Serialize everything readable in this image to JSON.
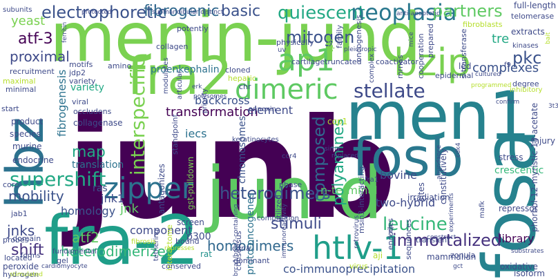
{
  "palette": {
    "dark_purple": "#440154",
    "indigo": "#3b528b",
    "blue": "#31688e",
    "teal": "#21918c",
    "green_teal": "#35b779",
    "green": "#5ec962",
    "lime": "#b5de2b",
    "yellow": "#fde725"
  },
  "words": [
    {
      "text": "junb",
      "color": "#440154"
    },
    {
      "text": "menin-jund",
      "color": "#7ad151"
    },
    {
      "text": "fra-2",
      "color": "#1f9e89"
    },
    {
      "text": "jun-d",
      "color": "#5ec962"
    },
    {
      "text": "men1",
      "color": "#26828e"
    },
    {
      "text": "fosb",
      "color": "#2a788e"
    },
    {
      "text": "fosa",
      "color": "#26828e"
    },
    {
      "text": "fra2",
      "color": "#7ad151"
    },
    {
      "text": "hbz",
      "color": "#2c728e"
    },
    {
      "text": "bzip",
      "color": "#7ad151"
    },
    {
      "text": "ap1",
      "color": "#5ec962"
    },
    {
      "text": "dimeric",
      "color": "#5ec962"
    },
    {
      "text": "zipper",
      "color": "#2c728e"
    },
    {
      "text": "htlv-1",
      "color": "#1f9e89"
    },
    {
      "text": "interspecific",
      "color": "#7ad151"
    },
    {
      "text": "supershift",
      "color": "#22a884"
    },
    {
      "text": "heterodimers",
      "color": "#3b528b"
    },
    {
      "text": "electrophoretic",
      "color": "#3b528b"
    },
    {
      "text": "quiescent",
      "color": "#22a884"
    },
    {
      "text": "neoplasia",
      "color": "#2a788e"
    },
    {
      "text": "partners",
      "color": "#5ec962"
    },
    {
      "text": "fibrogenic",
      "color": "#31688e"
    },
    {
      "text": "mitogen",
      "color": "#3b528b"
    },
    {
      "text": "stellate",
      "color": "#3e4a89"
    },
    {
      "text": "basic",
      "color": "#3b528b"
    },
    {
      "text": "atf-3",
      "color": "#440154"
    },
    {
      "text": "proximal",
      "color": "#3e4a89"
    },
    {
      "text": "yeast",
      "color": "#7ad151"
    },
    {
      "text": "pkc",
      "color": "#3b528b"
    },
    {
      "text": "composed",
      "color": "#31688e"
    },
    {
      "text": "polyamines",
      "color": "#22a884"
    },
    {
      "text": "stimuli",
      "color": "#3e4a89"
    },
    {
      "text": "leucine",
      "color": "#35b779"
    },
    {
      "text": "immortalized",
      "color": "#46327e"
    },
    {
      "text": "complexes",
      "color": "#3b528b"
    },
    {
      "text": "homodimers",
      "color": "#31688e"
    },
    {
      "text": "shift",
      "color": "#46327e"
    },
    {
      "text": "heterodimerizes",
      "color": "#35b779"
    },
    {
      "text": "mobility",
      "color": "#3b528b"
    },
    {
      "text": "jnks",
      "color": "#3e4a89"
    },
    {
      "text": "map",
      "color": "#22a884"
    },
    {
      "text": "transformation",
      "color": "#440154"
    },
    {
      "text": "backcross",
      "color": "#3b528b"
    },
    {
      "text": "element",
      "color": "#3e4a89"
    },
    {
      "text": "translation",
      "color": "#2c728e"
    },
    {
      "text": "jnk1",
      "color": "#3e4a89"
    },
    {
      "text": "jnk",
      "color": "#5ec962"
    },
    {
      "text": "atf2",
      "color": "#5ec962"
    },
    {
      "text": "component",
      "color": "#3e4a89"
    },
    {
      "text": "homology",
      "color": "#3b528b"
    },
    {
      "text": "two-hybrid",
      "color": "#3e4a89"
    },
    {
      "text": "n-terminal",
      "color": "#5ec962"
    },
    {
      "text": "bovine",
      "color": "#3e4a89"
    },
    {
      "text": "proenkephalin",
      "color": "#2c728e"
    },
    {
      "text": "tre",
      "color": "#22a884"
    },
    {
      "text": "fibrogenesis",
      "color": "#2c728e"
    },
    {
      "text": "variety",
      "color": "#22a884"
    },
    {
      "text": "library",
      "color": "#440154"
    },
    {
      "text": "crescentic",
      "color": "#35b779"
    },
    {
      "text": "phorbol-12-myristic-13-acetate",
      "color": "#3e4a89"
    },
    {
      "text": "co-immunoprecipitation",
      "color": "#3b528b"
    },
    {
      "text": "proto-oncogenes",
      "color": "#2c728e"
    },
    {
      "text": "chromosomes",
      "color": "#3b528b"
    },
    {
      "text": "gst-pulldown",
      "color": "#7ad151"
    },
    {
      "text": "antagonizes",
      "color": "#3e4a89"
    },
    {
      "text": "p300",
      "color": "#3e4a89"
    },
    {
      "text": "ras",
      "color": "#3b528b"
    },
    {
      "text": "rat",
      "color": "#21918c"
    },
    {
      "text": "iecs",
      "color": "#2c728e"
    },
    {
      "text": "collagenase",
      "color": "#3e4a89"
    },
    {
      "text": "fibroblasts",
      "color": "#b5de2b"
    },
    {
      "text": "extracts",
      "color": "#3e4a89"
    },
    {
      "text": "full-length",
      "color": "#3e4a89"
    },
    {
      "text": "oncogenesis",
      "color": "#3e4a89"
    },
    {
      "text": "cooperation",
      "color": "#3e4a89"
    },
    {
      "text": "irradiation",
      "color": "#3e4a89"
    },
    {
      "text": "mammalian",
      "color": "#3e4a89"
    },
    {
      "text": "immunoreactivity",
      "color": "#3e4a89"
    },
    {
      "text": "cartilage",
      "color": "#3e4a89"
    },
    {
      "text": "collagen",
      "color": "#3e4a89"
    },
    {
      "text": "tpa",
      "color": "#7ad151"
    },
    {
      "text": "hepatic",
      "color": "#b5de2b"
    },
    {
      "text": "cloned",
      "color": "#3e4a89"
    },
    {
      "text": "chr",
      "color": "#3e4a89"
    },
    {
      "text": "endocrine",
      "color": "#3e4a89"
    },
    {
      "text": "murine",
      "color": "#3e4a89"
    },
    {
      "text": "species",
      "color": "#3e4a89"
    },
    {
      "text": "product",
      "color": "#3e4a89"
    },
    {
      "text": "peroxide",
      "color": "#3e4a89"
    },
    {
      "text": "hydrogen",
      "color": "#3e4a89"
    },
    {
      "text": "located",
      "color": "#3e4a89"
    },
    {
      "text": "probes",
      "color": "#3e4a89"
    },
    {
      "text": "gel",
      "color": "#3e4a89"
    },
    {
      "text": "fundamental",
      "color": "#3e4a89"
    },
    {
      "text": "screen",
      "color": "#3e4a89"
    },
    {
      "text": "bound",
      "color": "#3e4a89"
    },
    {
      "text": "dominant",
      "color": "#3e4a89"
    },
    {
      "text": "cdna",
      "color": "#3e4a89"
    },
    {
      "text": "aji",
      "color": "#b5de2b"
    },
    {
      "text": "virus",
      "color": "#b5de2b"
    },
    {
      "text": "retrovirus",
      "color": "#3e4a89"
    },
    {
      "text": "encodes",
      "color": "#3e4a89"
    },
    {
      "text": "sequences",
      "color": "#3e4a89"
    },
    {
      "text": "transient",
      "color": "#3e4a89"
    },
    {
      "text": "zonula",
      "color": "#3e4a89"
    },
    {
      "text": "oxidative",
      "color": "#3e4a89"
    },
    {
      "text": "isoform",
      "color": "#3e4a89"
    },
    {
      "text": "repressor",
      "color": "#3e4a89"
    },
    {
      "text": "injury",
      "color": "#3e4a89"
    },
    {
      "text": "stress",
      "color": "#3e4a89"
    },
    {
      "text": "sites",
      "color": "#3e4a89"
    },
    {
      "text": "constitutively",
      "color": "#3e4a89"
    },
    {
      "text": "led",
      "color": "#3e4a89"
    },
    {
      "text": "cop1",
      "color": "#b5de2b"
    },
    {
      "text": "fra1",
      "color": "#3e4a89"
    },
    {
      "text": "ccr4",
      "color": "#3e4a89"
    },
    {
      "text": "phase",
      "color": "#3e4a89"
    },
    {
      "text": "utilized",
      "color": "#3e4a89"
    },
    {
      "text": "consensus",
      "color": "#3e4a89"
    },
    {
      "text": "interactome",
      "color": "#b5de2b"
    },
    {
      "text": "tethering",
      "color": "#3e4a89"
    },
    {
      "text": "composition",
      "color": "#3e4a89"
    },
    {
      "text": "msin3-interacting",
      "color": "#3e4a89"
    },
    {
      "text": "complex",
      "color": "#3e4a89"
    },
    {
      "text": "variety",
      "color": "#3e4a89"
    },
    {
      "text": "motifs",
      "color": "#3e4a89"
    },
    {
      "text": "viral",
      "color": "#3e4a89"
    },
    {
      "text": "occludens",
      "color": "#3e4a89"
    },
    {
      "text": "start",
      "color": "#3e4a89"
    },
    {
      "text": "minimal",
      "color": "#3e4a89"
    },
    {
      "text": "maximal",
      "color": "#b5de2b"
    },
    {
      "text": "recruitment",
      "color": "#3e4a89"
    },
    {
      "text": "subunits",
      "color": "#3e4a89"
    },
    {
      "text": "jdp2",
      "color": "#3e4a89"
    },
    {
      "text": "amino",
      "color": "#3e4a89"
    },
    {
      "text": "potently",
      "color": "#3e4a89"
    },
    {
      "text": "modulates",
      "color": "#3e4a89"
    },
    {
      "text": "articular",
      "color": "#3e4a89"
    },
    {
      "text": "standpoint",
      "color": "#3e4a89"
    },
    {
      "text": "core",
      "color": "#3e4a89"
    },
    {
      "text": "jab1",
      "color": "#3e4a89"
    },
    {
      "text": "domain",
      "color": "#3e4a89"
    },
    {
      "text": "stimulated",
      "color": "#b5de2b"
    },
    {
      "text": "forms",
      "color": "#3e4a89"
    },
    {
      "text": "cardiomyocyte",
      "color": "#3e4a89"
    },
    {
      "text": "fibrosis",
      "color": "#b5de2b"
    },
    {
      "text": "conserved",
      "color": "#3e4a89"
    },
    {
      "text": "priority",
      "color": "#3e4a89"
    },
    {
      "text": "physically",
      "color": "#3e4a89"
    },
    {
      "text": "uv",
      "color": "#3e4a89"
    },
    {
      "text": "family",
      "color": "#3e4a89"
    },
    {
      "text": "truncated",
      "color": "#3e4a89"
    },
    {
      "text": "coactivator",
      "color": "#3e4a89"
    },
    {
      "text": "prepared",
      "color": "#3e4a89"
    },
    {
      "text": "s-transferase",
      "color": "#3e4a89"
    },
    {
      "text": "mrnas",
      "color": "#3e4a89"
    },
    {
      "text": "epidermal",
      "color": "#3e4a89"
    },
    {
      "text": "cultured",
      "color": "#3e4a89"
    },
    {
      "text": "degree",
      "color": "#3e4a89"
    },
    {
      "text": "inhibitory",
      "color": "#b5de2b"
    },
    {
      "text": "programmed",
      "color": "#b5de2b"
    },
    {
      "text": "f9",
      "color": "#3e4a89"
    },
    {
      "text": "kinases",
      "color": "#3e4a89"
    },
    {
      "text": "telomerase",
      "color": "#3e4a89"
    },
    {
      "text": "anti-apoptotic",
      "color": "#3e4a89"
    },
    {
      "text": "submandibular distinct",
      "color": "#3e4a89"
    },
    {
      "text": "protected",
      "color": "#3e4a89"
    },
    {
      "text": "ferritin",
      "color": "#3e4a89"
    },
    {
      "text": "annexin",
      "color": "#3e4a89"
    },
    {
      "text": "polysomes",
      "color": "#3e4a89"
    },
    {
      "text": "erk",
      "color": "#3e4a89"
    },
    {
      "text": "3t3",
      "color": "#3e4a89"
    },
    {
      "text": "mafk",
      "color": "#3e4a89"
    },
    {
      "text": "cdk4",
      "color": "#3e4a89"
    },
    {
      "text": "abundance",
      "color": "#3e4a89"
    },
    {
      "text": "sirna",
      "color": "#3e4a89"
    },
    {
      "text": "replaced",
      "color": "#3e4a89"
    },
    {
      "text": "construct",
      "color": "#3e4a89"
    },
    {
      "text": "gct",
      "color": "#3e4a89"
    },
    {
      "text": "experiments",
      "color": "#3e4a89"
    },
    {
      "text": "substrates",
      "color": "#3e4a89"
    },
    {
      "text": "represses",
      "color": "#b5de2b"
    },
    {
      "text": "keratinocytes",
      "color": "#3e4a89"
    },
    {
      "text": "brca1/brca2-containing",
      "color": "#3e4a89"
    },
    {
      "text": "l-zip",
      "color": "#3e4a89"
    },
    {
      "text": "confirm",
      "color": "#3e4a89"
    },
    {
      "text": "bait",
      "color": "#b5de2b"
    },
    {
      "text": "pleiotropic",
      "color": "#3e4a89"
    },
    {
      "text": "mice",
      "color": "#3e4a89"
    }
  ]
}
